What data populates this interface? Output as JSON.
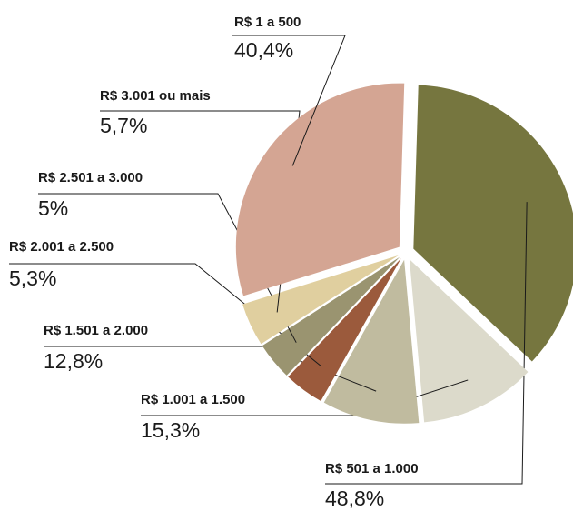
{
  "chart_data": {
    "type": "pie",
    "categories": [
      "R$ 501 a 1.000",
      "R$ 1.001 a 1.500",
      "R$ 1.501 a 2.000",
      "R$ 2.001 a 2.500",
      "R$ 2.501 a 3.000",
      "R$ 3.001 ou mais",
      "R$ 1 a 500"
    ],
    "values": [
      48.8,
      15.3,
      12.8,
      5.3,
      5,
      5.7,
      40.4
    ],
    "value_labels": [
      "48,8%",
      "15,3%",
      "12,8%",
      "5,3%",
      "5%",
      "5,7%",
      "40,4%"
    ],
    "colors": [
      "#76763f",
      "#dcdacb",
      "#c0bb9f",
      "#9b5a3c",
      "#9a9470",
      "#e0cf9f",
      "#d4a593"
    ]
  }
}
